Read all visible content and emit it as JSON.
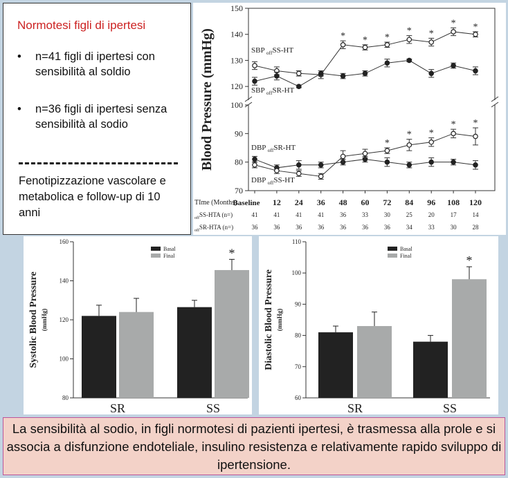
{
  "info": {
    "title": "Normotesi figli di ipertesi",
    "bullets": [
      "n=41 figli di ipertesi con sensibilità al soldio",
      "n=36 figli di ipertesi senza sensibilità al sodio"
    ],
    "bullet_symbol": "•",
    "phenotyping": "Fenotipizzazione vascolare e metabolica e follow-up di 10 anni"
  },
  "footer": {
    "text": "La sensibilità al sodio, in figli normotesi di pazienti ipertesi, è trasmessa alla prole e si associa a disfunzione endoteliale, insulino resistenza e relativamente rapido sviluppo di ipertensione."
  },
  "colors": {
    "title_red": "#cc2222",
    "bar_basal": "#222222",
    "bar_final": "#a8aaaa",
    "footer_bg": "#f3d2c8",
    "background": "#c3d4e2"
  },
  "chart_data": [
    {
      "type": "line",
      "ylabel": "Blood Pressure (mmHg)",
      "xlabel": "TIme (Months)",
      "categories": [
        "Baseline",
        "12",
        "24",
        "36",
        "48",
        "60",
        "72",
        "84",
        "96",
        "108",
        "120"
      ],
      "axis_break": true,
      "marker": "*",
      "upper_panel": {
        "ylim": [
          115,
          150
        ],
        "ticks": [
          120,
          130,
          140,
          150
        ],
        "series": [
          {
            "label_main": "SBP",
            "label_sub": "off",
            "label_rest": "SS-HT",
            "fill": "white",
            "values": [
              128,
              126,
              125,
              124.5,
              136,
              135,
              136,
              138,
              137,
              141,
              140
            ],
            "errors": [
              1.5,
              1.5,
              1,
              1.5,
              1.5,
              1,
              1,
              1.5,
              1.5,
              1.5,
              1
            ],
            "significant": [
              false,
              false,
              false,
              false,
              true,
              true,
              true,
              true,
              true,
              true,
              true
            ]
          },
          {
            "label_main": "SBP",
            "label_sub": "off",
            "label_rest": "SR-HT",
            "fill": "black",
            "values": [
              122,
              124,
              120,
              125,
              124,
              125,
              129,
              130,
              125,
              128,
              126
            ],
            "errors": [
              1.5,
              1.5,
              0.5,
              1,
              1,
              1,
              1.5,
              0.5,
              1.5,
              1,
              1.5
            ],
            "significant": [
              false,
              false,
              false,
              false,
              false,
              false,
              false,
              false,
              false,
              false,
              false
            ]
          }
        ]
      },
      "lower_panel": {
        "ylim": [
          70,
          100
        ],
        "ticks": [
          70,
          80,
          90,
          100
        ],
        "series": [
          {
            "label_main": "DBP",
            "label_sub": "off",
            "label_rest": "SR-HT",
            "fill": "black",
            "values": [
              81,
              78,
              79,
              79,
              80,
              81,
              80,
              79,
              80,
              80,
              79
            ],
            "errors": [
              1,
              1,
              1.5,
              1,
              1,
              1,
              1.5,
              1,
              1.5,
              1,
              1.5
            ],
            "significant": [
              false,
              false,
              false,
              false,
              false,
              false,
              false,
              false,
              false,
              false,
              false
            ]
          },
          {
            "label_main": "DBP",
            "label_sub": "off",
            "label_rest": "SS-HT",
            "fill": "white",
            "values": [
              79,
              77,
              76,
              75,
              82,
              83,
              84,
              86,
              87,
              90,
              89
            ],
            "errors": [
              1,
              1,
              1,
              1,
              2,
              1.5,
              1,
              2,
              1.5,
              1.5,
              3
            ],
            "significant": [
              false,
              false,
              false,
              false,
              false,
              false,
              true,
              true,
              true,
              true,
              true
            ]
          }
        ]
      },
      "table": {
        "header": "TIme (Months)",
        "rows": [
          {
            "label_sub": "off",
            "label_rest": "SS-HTA (n=)",
            "values": [
              "41",
              "41",
              "41",
              "41",
              "36",
              "33",
              "30",
              "25",
              "20",
              "17",
              "14"
            ]
          },
          {
            "label_sub": "off",
            "label_rest": "SR-HTA (n=)",
            "values": [
              "36",
              "36",
              "36",
              "36",
              "36",
              "36",
              "36",
              "34",
              "33",
              "30",
              "28"
            ]
          }
        ]
      }
    },
    {
      "type": "bar",
      "ylabel": "Systolic Blood Pressure",
      "ylabel_unit": "(mmHg)",
      "categories": [
        "SR",
        "SS"
      ],
      "ylim": [
        80,
        160
      ],
      "ticks": [
        80,
        100,
        120,
        140,
        160
      ],
      "legend": "top-center",
      "series": [
        {
          "name": "Basal",
          "values": [
            122,
            126.5
          ],
          "errors": [
            5.5,
            3.5
          ]
        },
        {
          "name": "Final",
          "values": [
            124,
            145.5
          ],
          "errors": [
            7,
            5.5
          ]
        }
      ],
      "annotations": [
        {
          "text": "*",
          "category": "SS",
          "series": "Final"
        }
      ]
    },
    {
      "type": "bar",
      "ylabel": "Diastolic Blood Pressure",
      "ylabel_unit": "(mmHg)",
      "categories": [
        "SR",
        "SS"
      ],
      "ylim": [
        60,
        110
      ],
      "ticks": [
        60,
        70,
        80,
        90,
        100,
        110
      ],
      "legend": "top-center",
      "series": [
        {
          "name": "Basal",
          "values": [
            81,
            78
          ],
          "errors": [
            2,
            2
          ]
        },
        {
          "name": "Final",
          "values": [
            83,
            98
          ],
          "errors": [
            4.5,
            4
          ]
        }
      ],
      "annotations": [
        {
          "text": "*",
          "category": "SS",
          "series": "Final"
        }
      ]
    }
  ]
}
